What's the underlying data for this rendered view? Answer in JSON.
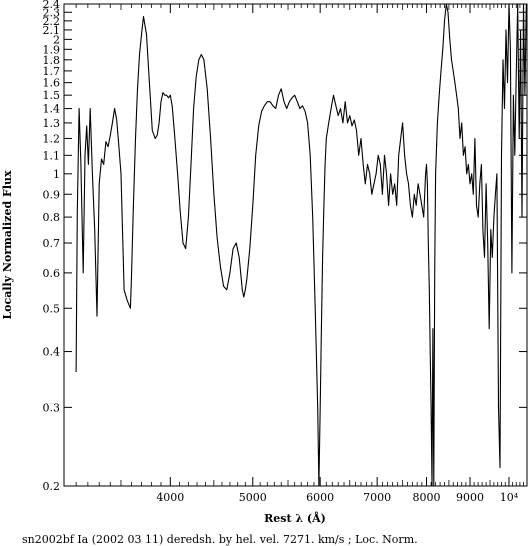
{
  "chart_data": {
    "type": "line",
    "title": "",
    "caption": "sn2002bf Ia (2002 03 11) deredsh. by hel. vel.  7271. km/s ;  Loc. Norm.",
    "xlabel": "Rest λ (Å)",
    "ylabel": "Locally Normalized Flux",
    "xscale": "log",
    "yscale": "log",
    "xlim": [
      3000,
      10500
    ],
    "ylim": [
      0.2,
      2.4
    ],
    "grid": false,
    "legend": "none",
    "line_color": "#000000",
    "x_ticks": [
      {
        "value": 4000,
        "label": "4000"
      },
      {
        "value": 5000,
        "label": "5000"
      },
      {
        "value": 6000,
        "label": "6000"
      },
      {
        "value": 7000,
        "label": "7000"
      },
      {
        "value": 8000,
        "label": "8000"
      },
      {
        "value": 9000,
        "label": "9000"
      },
      {
        "value": 10000,
        "label": "10⁴"
      }
    ],
    "y_ticks": [
      {
        "value": 0.2,
        "label": "0.2"
      },
      {
        "value": 0.3,
        "label": "0.3"
      },
      {
        "value": 0.4,
        "label": "0.4"
      },
      {
        "value": 0.5,
        "label": "0.5"
      },
      {
        "value": 0.6,
        "label": "0.6"
      },
      {
        "value": 0.7,
        "label": "0.7"
      },
      {
        "value": 0.8,
        "label": "0.8"
      },
      {
        "value": 0.9,
        "label": "0.9"
      },
      {
        "value": 1.0,
        "label": "1"
      },
      {
        "value": 1.1,
        "label": "1.1"
      },
      {
        "value": 1.2,
        "label": "1.2"
      },
      {
        "value": 1.3,
        "label": "1.3"
      },
      {
        "value": 1.4,
        "label": "1.4"
      },
      {
        "value": 1.5,
        "label": "1.5"
      },
      {
        "value": 1.6,
        "label": "1.6"
      },
      {
        "value": 1.7,
        "label": "1.7"
      },
      {
        "value": 1.8,
        "label": "1.8"
      },
      {
        "value": 1.9,
        "label": "1.9"
      },
      {
        "value": 2.0,
        "label": "2"
      },
      {
        "value": 2.1,
        "label": "2.1"
      },
      {
        "value": 2.2,
        "label": "2.2"
      },
      {
        "value": 2.3,
        "label": "2.3"
      },
      {
        "value": 2.4,
        "label": "2.4"
      }
    ],
    "series": [
      {
        "x": [
          3100,
          3110,
          3125,
          3140,
          3160,
          3175,
          3190,
          3205,
          3220,
          3240,
          3260,
          3280,
          3300,
          3320,
          3340,
          3360,
          3380,
          3400,
          3420,
          3440,
          3460,
          3480,
          3500,
          3530,
          3560,
          3590,
          3600,
          3620,
          3640,
          3660,
          3680,
          3700,
          3720,
          3750,
          3780,
          3810,
          3840,
          3860,
          3880,
          3900,
          3920,
          3940,
          3960,
          3980,
          4000,
          4020,
          4050,
          4080,
          4110,
          4140,
          4170,
          4200,
          4230,
          4260,
          4290,
          4320,
          4350,
          4380,
          4420,
          4460,
          4500,
          4540,
          4580,
          4620,
          4660,
          4700,
          4740,
          4780,
          4820,
          4860,
          4880,
          4900,
          4920,
          4960,
          5000,
          5040,
          5080,
          5120,
          5160,
          5200,
          5240,
          5280,
          5320,
          5360,
          5400,
          5440,
          5480,
          5520,
          5560,
          5600,
          5640,
          5680,
          5720,
          5760,
          5800,
          5840,
          5880,
          5920,
          5960,
          5980,
          6000,
          6020,
          6040,
          6060,
          6080,
          6100,
          6140,
          6180,
          6220,
          6260,
          6300,
          6340,
          6380,
          6420,
          6460,
          6500,
          6540,
          6580,
          6620,
          6660,
          6700,
          6740,
          6780,
          6820,
          6860,
          6900,
          6940,
          6980,
          7020,
          7060,
          7100,
          7140,
          7180,
          7220,
          7260,
          7300,
          7340,
          7380,
          7420,
          7460,
          7500,
          7540,
          7580,
          7620,
          7660,
          7700,
          7740,
          7780,
          7820,
          7860,
          7900,
          7940,
          7980,
          8000,
          8020,
          8040,
          8060,
          8080,
          8100,
          8120,
          8140,
          8160,
          8180,
          8200,
          8240,
          8280,
          8320,
          8360,
          8400,
          8440,
          8480,
          8520,
          8560,
          8600,
          8640,
          8680,
          8720,
          8760,
          8800,
          8840,
          8880,
          8920,
          8960,
          9000,
          9040,
          9080,
          9120,
          9160,
          9200,
          9240,
          9280,
          9320,
          9360,
          9400,
          9440,
          9480,
          9520,
          9560,
          9600,
          9640,
          9680,
          9720,
          9760,
          9800,
          9840,
          9880,
          9920,
          9960,
          10000,
          10040,
          10080,
          10120,
          10160,
          10200,
          10240,
          10280,
          10320,
          10360,
          10400,
          10440,
          10480
        ],
        "y": [
          0.36,
          0.82,
          1.4,
          1.05,
          0.6,
          1.1,
          1.28,
          1.05,
          1.4,
          1.0,
          0.75,
          0.48,
          0.95,
          1.08,
          1.05,
          1.18,
          1.15,
          1.22,
          1.3,
          1.4,
          1.32,
          1.15,
          1.0,
          0.55,
          0.52,
          0.5,
          0.58,
          0.85,
          1.2,
          1.55,
          1.85,
          2.05,
          2.25,
          2.05,
          1.6,
          1.25,
          1.2,
          1.22,
          1.3,
          1.45,
          1.52,
          1.5,
          1.5,
          1.48,
          1.5,
          1.42,
          1.2,
          1.0,
          0.82,
          0.7,
          0.68,
          0.8,
          1.05,
          1.4,
          1.65,
          1.8,
          1.85,
          1.8,
          1.55,
          1.2,
          0.9,
          0.72,
          0.62,
          0.56,
          0.55,
          0.6,
          0.68,
          0.7,
          0.65,
          0.55,
          0.53,
          0.55,
          0.58,
          0.68,
          0.85,
          1.1,
          1.28,
          1.38,
          1.42,
          1.45,
          1.45,
          1.42,
          1.4,
          1.5,
          1.55,
          1.45,
          1.4,
          1.45,
          1.48,
          1.5,
          1.45,
          1.4,
          1.42,
          1.38,
          1.3,
          1.1,
          0.8,
          0.5,
          0.3,
          0.2,
          0.3,
          0.45,
          0.65,
          0.85,
          1.05,
          1.2,
          1.3,
          1.4,
          1.5,
          1.42,
          1.35,
          1.4,
          1.3,
          1.45,
          1.3,
          1.35,
          1.28,
          1.32,
          1.25,
          1.1,
          1.2,
          1.05,
          0.95,
          1.05,
          1.0,
          0.9,
          0.95,
          1.0,
          1.1,
          1.05,
          0.9,
          1.1,
          1.0,
          0.85,
          1.0,
          0.9,
          0.95,
          0.85,
          1.1,
          1.2,
          1.3,
          1.1,
          1.0,
          0.95,
          0.85,
          0.8,
          0.9,
          0.85,
          0.95,
          0.9,
          0.85,
          0.8,
          1.0,
          1.05,
          0.95,
          0.7,
          0.55,
          0.4,
          0.3,
          0.2,
          0.45,
          0.2,
          0.6,
          1.0,
          1.3,
          1.5,
          1.7,
          1.9,
          2.2,
          2.4,
          2.3,
          2.0,
          1.8,
          1.7,
          1.6,
          1.5,
          1.4,
          1.2,
          1.3,
          1.1,
          1.15,
          1.0,
          1.05,
          0.95,
          1.0,
          0.9,
          1.2,
          0.85,
          0.8,
          0.95,
          1.05,
          0.75,
          0.65,
          0.95,
          0.7,
          0.45,
          0.75,
          0.65,
          0.8,
          0.9,
          1.0,
          0.3,
          0.22,
          1.1,
          1.8,
          1.4,
          2.1,
          1.6,
          2.4,
          1.9,
          0.6,
          1.5,
          1.1,
          1.7,
          2.4,
          1.2,
          2.1,
          0.8,
          2.4,
          1.5,
          2.4
        ]
      }
    ]
  }
}
